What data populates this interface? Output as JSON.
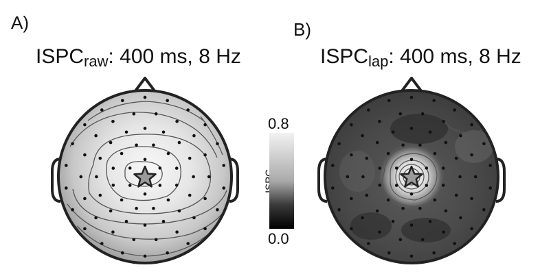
{
  "panels": [
    {
      "label": "A)",
      "title_main": "ISPC",
      "title_sub": "raw",
      "title_rest": ": 400 ms, 8 Hz",
      "map_style": "global-spread"
    },
    {
      "label": "B)",
      "title_main": "ISPC",
      "title_sub": "lap",
      "title_rest": ": 400 ms, 8 Hz",
      "map_style": "local-focus"
    }
  ],
  "colorbar": {
    "label": "ISPC",
    "max_label": "0.8",
    "min_label": "0.0",
    "range": [
      0.0,
      0.8
    ],
    "colormap": "grayscale (black = 0, white = 0.8)"
  },
  "seed_marker": "star-icon",
  "colors": {
    "head_outline": "#222222",
    "electrode": "#111111",
    "contour": "#555555"
  }
}
